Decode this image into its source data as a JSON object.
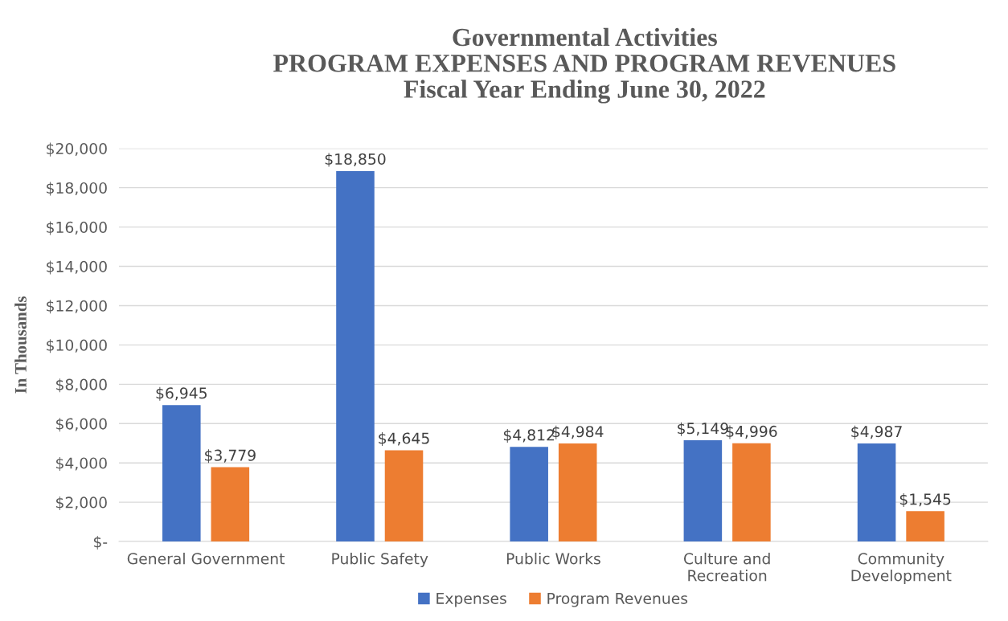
{
  "chart_data": {
    "type": "bar",
    "title": "Governmental Activities\nPROGRAM EXPENSES AND PROGRAM REVENUES\nFiscal Year Ending June 30, 2022",
    "ylabel": "In Thousands",
    "categories": [
      "General Government",
      "Public Safety",
      "Public Works",
      "Culture and\nRecreation",
      "Community\nDevelopment"
    ],
    "series": [
      {
        "name": "Expenses",
        "color": "#4472c4",
        "values": [
          6945,
          18850,
          4812,
          5149,
          4987
        ],
        "value_labels": [
          "$6,945",
          "$18,850",
          "$4,812",
          "$5,149",
          "$4,987"
        ]
      },
      {
        "name": "Program Revenues",
        "color": "#ed7d31",
        "values": [
          3779,
          4645,
          4984,
          4996,
          1545
        ],
        "value_labels": [
          "$3,779",
          "$4,645",
          "$4,984",
          "$4,996",
          "$1,545"
        ]
      }
    ],
    "ylim": [
      0,
      20000
    ],
    "yticks": [
      {
        "value": 0,
        "label": "$-"
      },
      {
        "value": 2000,
        "label": "$2,000"
      },
      {
        "value": 4000,
        "label": "$4,000"
      },
      {
        "value": 6000,
        "label": "$6,000"
      },
      {
        "value": 8000,
        "label": "$8,000"
      },
      {
        "value": 10000,
        "label": "$10,000"
      },
      {
        "value": 12000,
        "label": "$12,000"
      },
      {
        "value": 14000,
        "label": "$14,000"
      },
      {
        "value": 16000,
        "label": "$16,000"
      },
      {
        "value": 18000,
        "label": "$18,000"
      },
      {
        "value": 20000,
        "label": "$20,000"
      }
    ],
    "grid": "y",
    "legend": "bottom"
  }
}
